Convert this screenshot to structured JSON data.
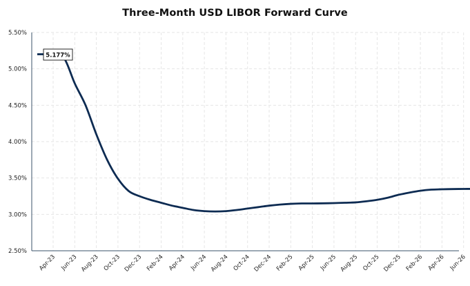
{
  "chart_data": {
    "type": "line",
    "title": "Three-Month USD LIBOR Forward Curve",
    "xlabel": "",
    "ylabel": "",
    "x_tick_labels": [
      "Apr-23",
      "Jun-23",
      "Aug-23",
      "Oct-23",
      "Dec-23",
      "Feb-24",
      "Apr-24",
      "Jun-24",
      "Aug-24",
      "Oct-24",
      "Dec-24",
      "Feb-25",
      "Apr-25",
      "Jun-25",
      "Aug-25",
      "Oct-25",
      "Dec-25",
      "Feb-26",
      "Apr-26",
      "Jun-26"
    ],
    "y_tick_labels": [
      "2.50%",
      "3.00%",
      "3.50%",
      "4.00%",
      "4.50%",
      "5.00%",
      "5.50%"
    ],
    "ylim": [
      2.5,
      5.5
    ],
    "grid": true,
    "series": [
      {
        "color": "#0d2b52",
        "x": [
          "Apr-23",
          "May-23",
          "Jun-23",
          "Jul-23",
          "Aug-23",
          "Sep-23",
          "Oct-23",
          "Nov-23",
          "Dec-23",
          "Jan-24",
          "Feb-24",
          "Mar-24",
          "Apr-24",
          "May-24",
          "Jun-24",
          "Jul-24",
          "Aug-24",
          "Sep-24",
          "Oct-24",
          "Nov-24",
          "Dec-24",
          "Jan-25",
          "Feb-25",
          "Mar-25",
          "Apr-25",
          "May-25",
          "Jun-25",
          "Jul-25",
          "Aug-25",
          "Sep-25",
          "Oct-25",
          "Nov-25",
          "Dec-25",
          "Jan-26",
          "Feb-26",
          "Mar-26",
          "Apr-26",
          "May-26",
          "Jun-26",
          "Jul-26"
        ],
        "values": [
          5.177,
          5.15,
          4.8,
          4.5,
          4.1,
          3.75,
          3.49,
          3.32,
          3.25,
          3.2,
          3.16,
          3.12,
          3.09,
          3.06,
          3.045,
          3.04,
          3.045,
          3.06,
          3.08,
          3.1,
          3.12,
          3.135,
          3.145,
          3.15,
          3.15,
          3.152,
          3.155,
          3.16,
          3.165,
          3.18,
          3.2,
          3.23,
          3.27,
          3.3,
          3.325,
          3.34,
          3.345,
          3.348,
          3.35,
          3.35
        ]
      }
    ],
    "annotations": [
      {
        "label": "5.177%",
        "at_index": 0
      }
    ]
  }
}
